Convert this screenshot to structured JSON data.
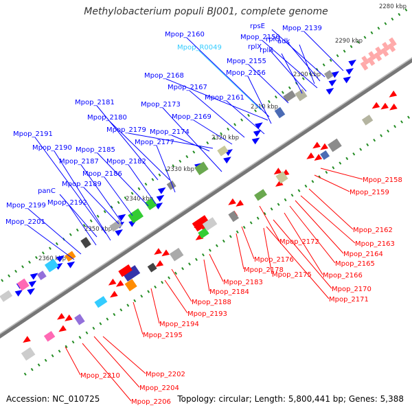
{
  "title": "Methylobacterium populi BJ001, complete genome",
  "accession": "Accession: NC_010725",
  "summary": "Topology: circular; Length: 5,800,441 bp; Genes: 5,388",
  "colors": {
    "forward": "#0000ff",
    "reverse": "#ff0000",
    "rna": "#33ccff",
    "backbone": "#777777",
    "tick": "#228b22"
  },
  "scale_labels": [
    "2280 kbp",
    "2290 kbp",
    "2300 kbp",
    "2310 kbp",
    "2320 kbp",
    "2330 kbp",
    "2340 kbp",
    "2350 kbp",
    "2360 kbp"
  ],
  "forward_genes": [
    "Mpop_2139",
    "rpsE",
    "rplO",
    "adk",
    "Mpop_2150",
    "rplX",
    "rplR",
    "Mpop_2160",
    "Mpop_R0049",
    "Mpop_2155",
    "Mpop_2156",
    "Mpop_2168",
    "Mpop_2167",
    "Mpop_2161",
    "Mpop_2181",
    "Mpop_2173",
    "Mpop_2169",
    "Mpop_2180",
    "Mpop_2179",
    "Mpop_2174",
    "Mpop_2177",
    "Mpop_2191",
    "Mpop_2190",
    "Mpop_2185",
    "Mpop_2187",
    "Mpop_2182",
    "Mpop_2186",
    "Mpop_2189",
    "panC",
    "Mpop_2192",
    "Mpop_2199",
    "Mpop_2201"
  ],
  "reverse_genes": [
    "Mpop_2158",
    "Mpop_2159",
    "Mpop_2162",
    "Mpop_2163",
    "Mpop_2164",
    "Mpop_2165",
    "Mpop_2166",
    "Mpop_2172",
    "Mpop_2170",
    "Mpop_2171",
    "Mpop_2176",
    "Mpop_2178",
    "Mpop_2175",
    "Mpop_2183",
    "Mpop_2184",
    "Mpop_2188",
    "Mpop_2193",
    "Mpop_2194",
    "Mpop_2195",
    "Mpop_2202",
    "Mpop_2210",
    "Mpop_2204",
    "Mpop_2206"
  ]
}
